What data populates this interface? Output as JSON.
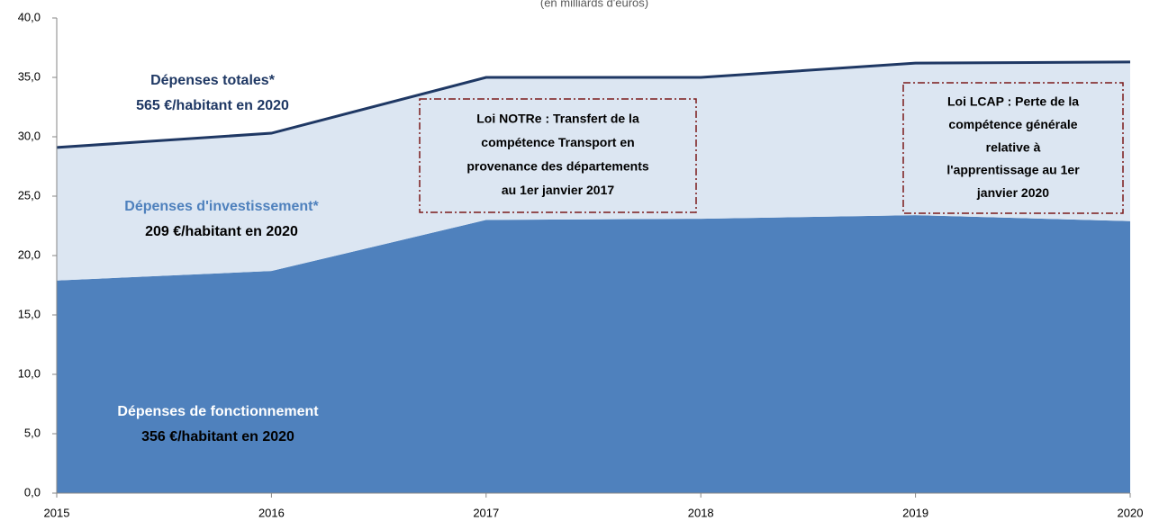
{
  "chart_data": {
    "type": "stacked-area",
    "subtitle": "(en milliards d'euros)",
    "x": [
      2015,
      2016,
      2017,
      2018,
      2019,
      2020
    ],
    "xlim": [
      2015,
      2020
    ],
    "xticks": [
      2015,
      2016,
      2017,
      2018,
      2019,
      2020
    ],
    "ylim": [
      0,
      40
    ],
    "yticks": [
      {
        "value": 0,
        "label": "0,0"
      },
      {
        "value": 5,
        "label": "5,0"
      },
      {
        "value": 10,
        "label": "10,0"
      },
      {
        "value": 15,
        "label": "15,0"
      },
      {
        "value": 20,
        "label": "20,0"
      },
      {
        "value": 25,
        "label": "25,0"
      },
      {
        "value": 30,
        "label": "30,0"
      },
      {
        "value": 35,
        "label": "35,0"
      },
      {
        "value": 40,
        "label": "40,0"
      }
    ],
    "series": [
      {
        "name": "Dépenses de fonctionnement",
        "color": "#4f81bd",
        "values": [
          17.9,
          18.7,
          23.0,
          23.1,
          23.4,
          22.9
        ]
      },
      {
        "name": "Dépenses d'investissement*",
        "color": "#dce6f2",
        "values": [
          11.2,
          11.6,
          12.0,
          11.9,
          12.8,
          13.4
        ]
      }
    ],
    "total_line_color": "#1f3864",
    "labels": [
      {
        "lines": [
          "Dépenses totales*",
          "565 €/habitant en 2020"
        ],
        "colors": [
          "#1f3864",
          "#1f3864"
        ]
      },
      {
        "lines": [
          "Dépenses d'investissement*",
          "209 €/habitant en 2020"
        ],
        "colors": [
          "#4f81bd",
          "#000000"
        ]
      },
      {
        "lines": [
          "Dépenses de fonctionnement",
          "356 €/habitant en 2020"
        ],
        "colors": [
          "#ffffff",
          "#000000"
        ]
      }
    ],
    "annotations": [
      {
        "lines": [
          "Loi NOTRe : Transfert de la",
          "compétence Transport en",
          "provenance des départements",
          "au 1er janvier 2017"
        ]
      },
      {
        "lines": [
          "Loi LCAP : Perte de la",
          "compétence générale",
          "relative à",
          "l'apprentissage au 1er",
          "janvier 2020"
        ]
      }
    ]
  }
}
